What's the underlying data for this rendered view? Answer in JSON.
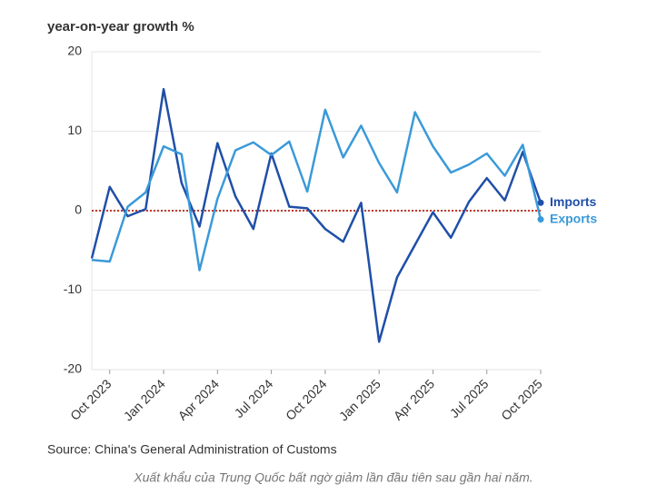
{
  "chart_data": {
    "type": "line",
    "title": "year-on-year growth %",
    "source": "Source: China's General Administration of Customs",
    "caption": "Xuất khẩu của Trung Quốc bất ngờ giảm lần đầu tiên sau gần hai năm.",
    "categories": [
      null,
      "Oct 2023",
      null,
      null,
      "Jan 2024",
      null,
      null,
      "Apr 2024",
      null,
      null,
      "Jul 2024",
      null,
      null,
      "Oct 2024",
      null,
      null,
      "Jan 2025",
      null,
      null,
      "Apr 2025",
      null,
      null,
      "Jul 2025",
      null,
      null,
      "Oct 2025"
    ],
    "series": [
      {
        "name": "Imports",
        "color": "#1f4fa8",
        "values": [
          -6,
          3,
          -0.7,
          0.2,
          15.3,
          3.5,
          -2,
          8.5,
          1.8,
          -2.3,
          7.2,
          0.5,
          0.3,
          -2.3,
          -3.9,
          1.0,
          -16.5,
          -8.4,
          -4.3,
          -0.2,
          -3.4,
          1.1,
          4.1,
          1.3,
          7.4,
          1.0
        ]
      },
      {
        "name": "Exports",
        "color": "#3a9ad9",
        "values": [
          -6.2,
          -6.4,
          0.5,
          2.3,
          8.1,
          7.1,
          -7.5,
          1.5,
          7.6,
          8.6,
          7.0,
          8.7,
          2.4,
          12.7,
          6.7,
          10.7,
          6.0,
          2.3,
          12.4,
          8.1,
          4.8,
          5.8,
          7.2,
          4.4,
          8.3,
          -1.1
        ]
      }
    ],
    "ylim": [
      -20,
      20
    ],
    "yticks": [
      -20,
      -10,
      0,
      10,
      20
    ],
    "grid": true,
    "zero_line_color": "#c0392b"
  }
}
